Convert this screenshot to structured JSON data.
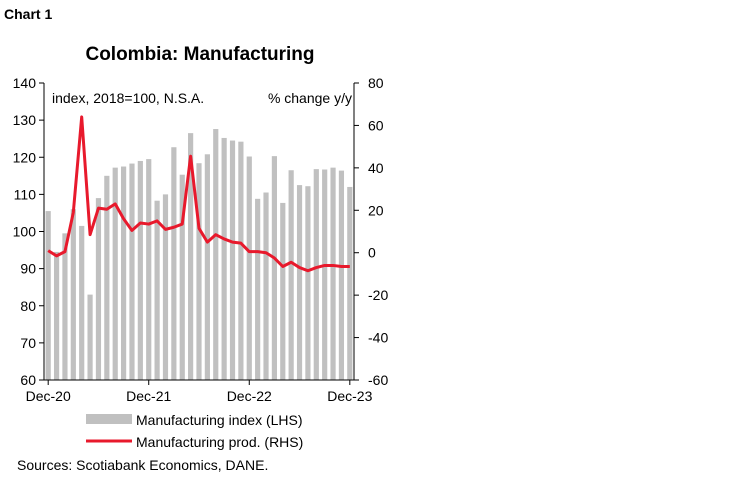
{
  "chart_label": "Chart 1",
  "source": "Sources: Scotiabank Economics, DANE.",
  "chart_data": {
    "type": "bar",
    "title": "Colombia: Manufacturing",
    "left_axis_note": "index, 2018=100, N.S.A.",
    "right_axis_note": "% change y/y",
    "x_tick_labels": [
      "Dec-20",
      "Dec-21",
      "Dec-22",
      "Dec-23"
    ],
    "x_tick_indices": [
      0,
      12,
      24,
      36
    ],
    "ylim_left": [
      60,
      140
    ],
    "yticks_left": [
      60,
      70,
      80,
      90,
      100,
      110,
      120,
      130,
      140
    ],
    "ylim_right": [
      -60,
      80
    ],
    "yticks_right": [
      -60,
      -40,
      -20,
      0,
      20,
      40,
      60,
      80
    ],
    "grid": false,
    "legend_position": "bottom",
    "series": [
      {
        "name": "Manufacturing index (LHS)",
        "type": "bar",
        "axis": "left",
        "color": "#c0c0c0",
        "values": [
          105.5,
          94.5,
          99.5,
          106.0,
          101.5,
          83.0,
          109.0,
          115.0,
          117.2,
          117.5,
          118.3,
          119.0,
          119.5,
          108.3,
          110.0,
          122.7,
          115.3,
          126.5,
          118.4,
          120.8,
          127.6,
          125.2,
          124.5,
          124.2,
          120.2,
          108.8,
          110.5,
          120.3,
          107.7,
          116.5,
          112.5,
          112.2,
          116.8,
          116.7,
          117.2,
          116.4,
          112.0
        ]
      },
      {
        "name": "Manufacturing prod. (RHS)",
        "type": "line",
        "axis": "right",
        "color": "#e8192c",
        "values": [
          1.0,
          -1.5,
          0.5,
          19.0,
          64.0,
          8.5,
          21.0,
          20.5,
          23.0,
          16.0,
          10.5,
          14.0,
          13.5,
          15.0,
          11.0,
          12.0,
          13.5,
          45.5,
          11.5,
          5.0,
          8.5,
          6.5,
          5.0,
          4.5,
          0.5,
          0.5,
          0.0,
          -2.5,
          -6.5,
          -4.5,
          -7.0,
          -8.5,
          -7.0,
          -6.0,
          -6.0,
          -6.5,
          -6.5
        ]
      }
    ]
  }
}
